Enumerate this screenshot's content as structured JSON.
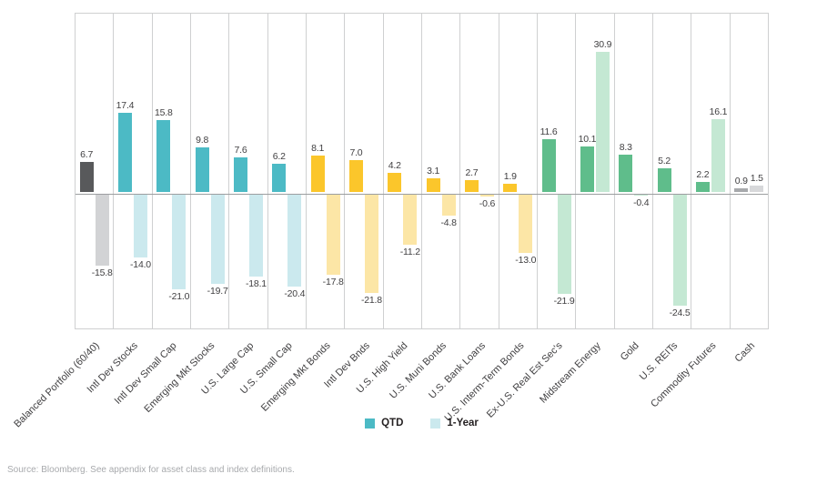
{
  "chart_data": {
    "type": "bar",
    "title": "",
    "categories": [
      "Balanced Portfolio (60/40)",
      "Intl Dev Stocks",
      "Intl Dev Small Cap",
      "Emerging Mkt Stocks",
      "U.S. Large Cap",
      "U.S. Small Cap",
      "Emerging Mkt Bonds",
      "Intl Dev Bnds",
      "U.S. High Yield",
      "U.S. Muni Bonds",
      "U.S. Bank Loans",
      "U.S. Interm-Term Bonds",
      "Ex-U.S. Real Est Sec's",
      "Midstream Energy",
      "Gold",
      "U.S. REITs",
      "Commodity Futures",
      "Cash"
    ],
    "series": [
      {
        "name": "QTD",
        "values": [
          6.7,
          17.4,
          15.8,
          9.8,
          7.6,
          6.2,
          8.1,
          7.0,
          4.2,
          3.1,
          2.7,
          1.9,
          11.6,
          10.1,
          8.3,
          5.2,
          2.2,
          0.9
        ]
      },
      {
        "name": "1-Year",
        "values": [
          -15.8,
          -14.0,
          -21.0,
          -19.7,
          -18.1,
          -20.4,
          -17.8,
          -21.8,
          -11.2,
          -4.8,
          -0.6,
          -13.0,
          -21.9,
          30.9,
          -0.4,
          -24.5,
          16.1,
          1.5
        ]
      }
    ],
    "groups": [
      "balanced",
      "equity",
      "equity",
      "equity",
      "equity",
      "equity",
      "bond",
      "bond",
      "bond",
      "bond",
      "bond",
      "bond",
      "alt",
      "alt",
      "alt",
      "alt",
      "alt",
      "cash"
    ],
    "group_colors": {
      "balanced": {
        "qtd": "#58595b",
        "year": "#d2d3d5"
      },
      "equity": {
        "qtd": "#4cbac5",
        "year": "#cbe9ee"
      },
      "bond": {
        "qtd": "#fbc62b",
        "year": "#fce6a6"
      },
      "alt": {
        "qtd": "#5fbd8b",
        "year": "#c4e8d3"
      },
      "cash": {
        "qtd": "#a7a9ac",
        "year": "#d7d8da"
      }
    },
    "legend": [
      "QTD",
      "1-Year"
    ],
    "legend_colors": [
      "#4cbac5",
      "#cbe9ee"
    ],
    "legend_position": "bottom-center",
    "ylim": [
      -30,
      40
    ],
    "value_label_format": "one-decimal",
    "grid": "vertical-column-borders"
  },
  "source": "Source: Bloomberg. See appendix for asset class and index definitions."
}
